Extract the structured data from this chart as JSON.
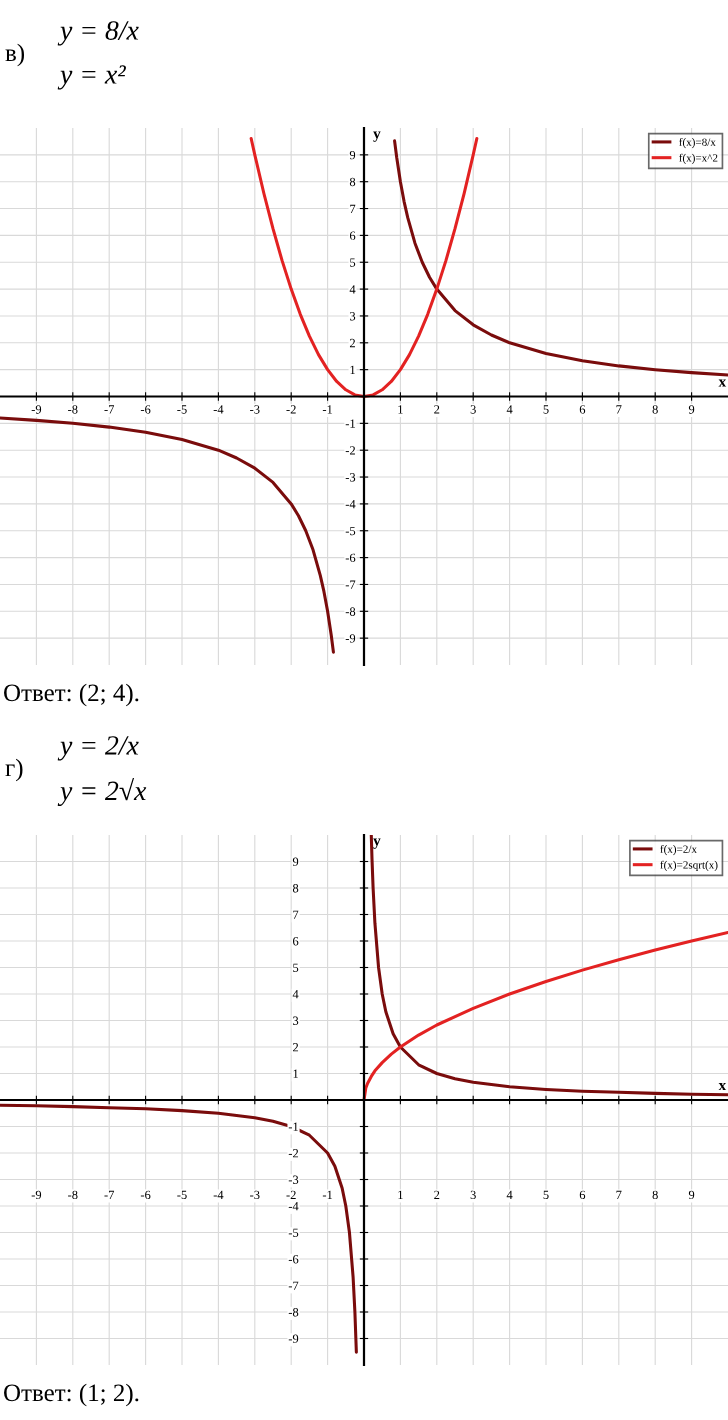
{
  "chart_data": [
    {
      "type": "line",
      "title": "в)",
      "xlabel": "x",
      "ylabel": "y",
      "annotations": [
        "y = 8/x",
        "y = x²",
        "Ответ: (2; 4)."
      ],
      "xlim": [
        -10,
        10
      ],
      "ylim": [
        -10,
        10
      ],
      "xticks": [
        -9,
        -8,
        -7,
        -6,
        -5,
        -4,
        -3,
        -2,
        -1,
        1,
        2,
        3,
        4,
        5,
        6,
        7,
        8,
        9
      ],
      "yticks": [
        -9,
        -8,
        -7,
        -6,
        -5,
        -4,
        -3,
        -2,
        -1,
        1,
        2,
        3,
        4,
        5,
        6,
        7,
        8,
        9
      ],
      "grid": true,
      "legend": "top right",
      "marker": "none",
      "line_style": "solid",
      "series": [
        {
          "name": "f(x)=8/x",
          "color": "#7a0c0c",
          "x": [
            -10,
            -9,
            -8,
            -7,
            -6,
            -5,
            -4,
            -3.5,
            -3,
            -2.5,
            -2,
            -1.8,
            -1.6,
            -1.4,
            -1.2,
            -1.1,
            -1,
            -0.9,
            -0.84,
            0,
            0.84,
            0.9,
            1,
            1.1,
            1.2,
            1.4,
            1.6,
            1.8,
            2,
            2.5,
            3,
            3.5,
            4,
            5,
            6,
            7,
            8,
            9,
            10
          ],
          "values": [
            -0.8,
            -0.89,
            -1,
            -1.14,
            -1.33,
            -1.6,
            -2,
            -2.29,
            -2.67,
            -3.2,
            -4,
            -4.44,
            -5,
            -5.71,
            -6.67,
            -7.27,
            -8,
            -8.89,
            -9.52,
            null,
            9.52,
            8.89,
            8,
            7.27,
            6.67,
            5.71,
            5,
            4.44,
            4,
            3.2,
            2.67,
            2.29,
            2,
            1.6,
            1.33,
            1.14,
            1,
            0.89,
            0.8
          ]
        },
        {
          "name": "f(x)=x^2",
          "color": "#e32222",
          "x": [
            -3.1,
            -3,
            -2.75,
            -2.5,
            -2.25,
            -2,
            -1.75,
            -1.5,
            -1.25,
            -1,
            -0.75,
            -0.5,
            -0.25,
            0,
            0.25,
            0.5,
            0.75,
            1,
            1.25,
            1.5,
            1.75,
            2,
            2.25,
            2.5,
            2.75,
            3,
            3.1
          ],
          "values": [
            9.61,
            9,
            7.56,
            6.25,
            5.06,
            4,
            3.06,
            2.25,
            1.56,
            1,
            0.56,
            0.25,
            0.06,
            0,
            0.06,
            0.25,
            0.56,
            1,
            1.56,
            2.25,
            3.06,
            4,
            5.06,
            6.25,
            7.56,
            9,
            9.61
          ]
        }
      ]
    },
    {
      "type": "line",
      "title": "г)",
      "xlabel": "x",
      "ylabel": "y",
      "annotations": [
        "y = 2/x",
        "y = 2√x",
        "Ответ: (1; 2)."
      ],
      "xlim": [
        -10,
        10
      ],
      "ylim": [
        -10,
        10
      ],
      "xticks": [
        -9,
        -8,
        -7,
        -6,
        -5,
        -4,
        -3,
        -2,
        -1,
        1,
        2,
        3,
        4,
        5,
        6,
        7,
        8,
        9
      ],
      "yticks": [
        -9,
        -8,
        -7,
        -6,
        -5,
        -4,
        -3,
        -2,
        -1,
        1,
        2,
        3,
        4,
        5,
        6,
        7,
        8,
        9
      ],
      "grid": true,
      "legend": "top right",
      "marker": "none",
      "line_style": "solid",
      "series": [
        {
          "name": "f(x)=2/x",
          "color": "#7a0c0c",
          "x": [
            -10,
            -9,
            -8,
            -7,
            -6,
            -5,
            -4,
            -3,
            -2.5,
            -2,
            -1.5,
            -1,
            -0.8,
            -0.6,
            -0.5,
            -0.4,
            -0.3,
            -0.25,
            -0.21,
            0,
            0.2,
            0.22,
            0.25,
            0.3,
            0.4,
            0.5,
            0.6,
            0.8,
            1,
            1.5,
            2,
            2.5,
            3,
            4,
            5,
            6,
            7,
            8,
            9,
            10
          ],
          "values": [
            -0.2,
            -0.22,
            -0.25,
            -0.29,
            -0.33,
            -0.4,
            -0.5,
            -0.67,
            -0.8,
            -1,
            -1.33,
            -2,
            -2.5,
            -3.33,
            -4,
            -5,
            -6.67,
            -8,
            -9.52,
            null,
            10,
            9.09,
            8,
            6.67,
            5,
            4,
            3.33,
            2.5,
            2,
            1.33,
            1,
            0.8,
            0.67,
            0.5,
            0.4,
            0.33,
            0.29,
            0.25,
            0.22,
            0.2
          ]
        },
        {
          "name": "f(x)=2sqrt(x)",
          "color": "#e32222",
          "x": [
            0,
            0.05,
            0.1,
            0.2,
            0.3,
            0.5,
            0.75,
            1,
            1.5,
            2,
            3,
            4,
            5,
            6,
            7,
            8,
            9,
            10
          ],
          "values": [
            0,
            0.45,
            0.63,
            0.89,
            1.1,
            1.41,
            1.73,
            2,
            2.45,
            2.83,
            3.46,
            4,
            4.47,
            4.9,
            5.29,
            5.66,
            6,
            6.32
          ]
        }
      ]
    }
  ]
}
